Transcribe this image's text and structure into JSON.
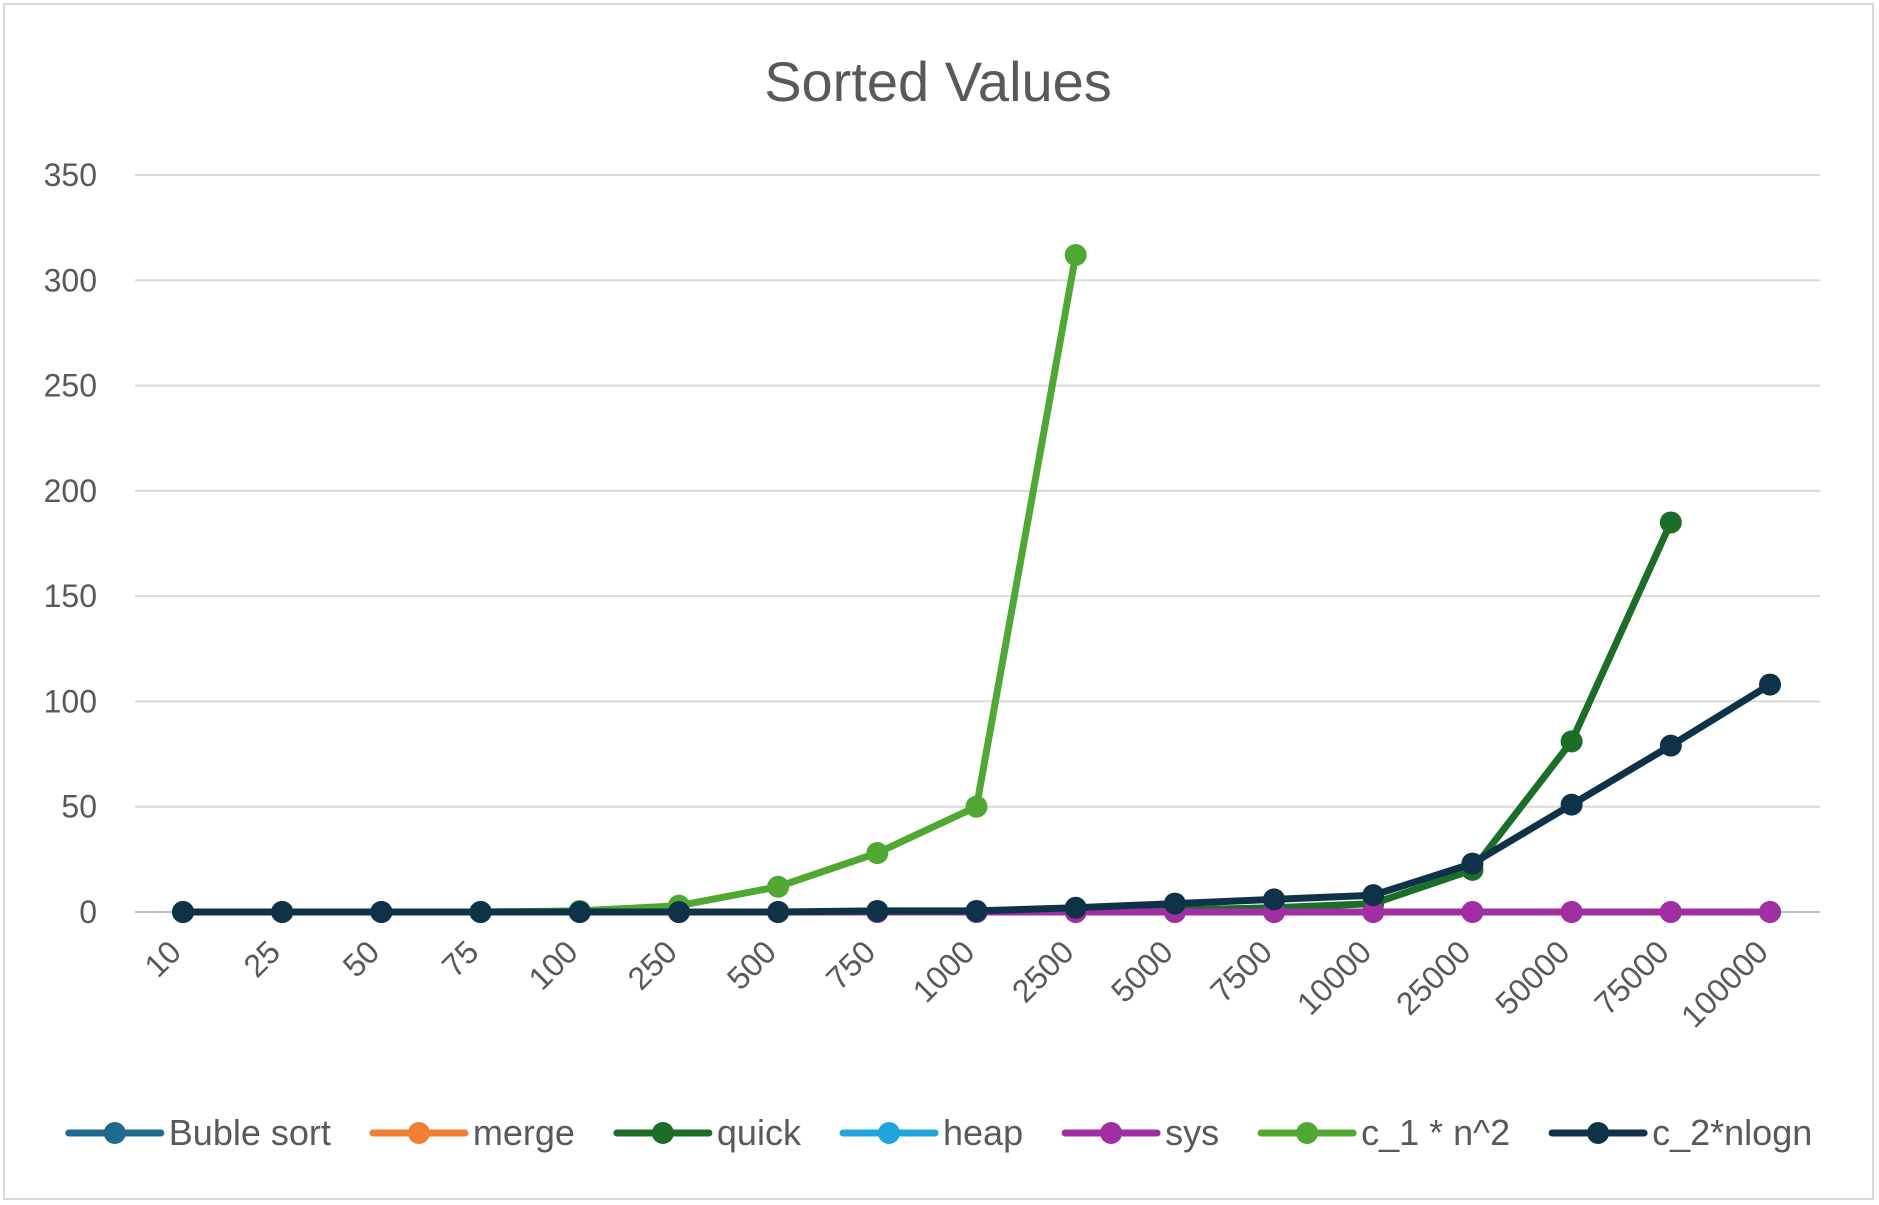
{
  "chart_data": {
    "type": "line",
    "title": "Sorted Values",
    "xlabel": "",
    "ylabel": "",
    "categories": [
      "10",
      "25",
      "50",
      "75",
      "100",
      "250",
      "500",
      "750",
      "1000",
      "2500",
      "5000",
      "7500",
      "10000",
      "25000",
      "50000",
      "75000",
      "100000"
    ],
    "ylim": [
      0,
      350
    ],
    "yticks": [
      0,
      50,
      100,
      150,
      200,
      250,
      300,
      350
    ],
    "grid": true,
    "legend_position": "bottom",
    "series": [
      {
        "name": "Buble sort",
        "color": "#1f6b8f",
        "values": [
          0,
          0,
          0,
          0,
          0,
          0,
          0,
          0,
          0,
          null,
          null,
          null,
          null,
          null,
          null,
          null,
          null
        ]
      },
      {
        "name": "merge",
        "color": "#f07f35",
        "values": [
          0,
          0,
          0,
          0,
          0,
          0,
          0,
          0,
          0,
          0,
          0,
          0,
          0,
          0,
          0,
          0,
          0
        ]
      },
      {
        "name": "quick",
        "color": "#1b6e28",
        "values": [
          0,
          0,
          0,
          0,
          0,
          0,
          0,
          0,
          0,
          0.5,
          1,
          2,
          4,
          20,
          81,
          185,
          null
        ]
      },
      {
        "name": "heap",
        "color": "#1ea6dc",
        "values": [
          0,
          0,
          0,
          0,
          0,
          0,
          0,
          0,
          0,
          0,
          0,
          0,
          0,
          0,
          0,
          0,
          0
        ]
      },
      {
        "name": "sys",
        "color": "#a12ea3",
        "values": [
          0,
          0,
          0,
          0,
          0,
          0,
          0,
          0,
          0,
          0,
          0,
          0,
          0,
          0,
          0,
          0,
          0
        ]
      },
      {
        "name": "c_1 * n^2",
        "color": "#4fa832",
        "values": [
          0,
          0,
          0,
          0,
          0.5,
          3,
          12,
          28,
          50,
          312,
          null,
          null,
          null,
          null,
          null,
          null,
          null
        ]
      },
      {
        "name": "c_2*nlogn",
        "color": "#0e3349",
        "values": [
          0,
          0,
          0,
          0,
          0,
          0,
          0,
          0.5,
          0.5,
          2,
          4,
          6,
          8,
          23,
          51,
          79,
          108
        ]
      }
    ]
  }
}
